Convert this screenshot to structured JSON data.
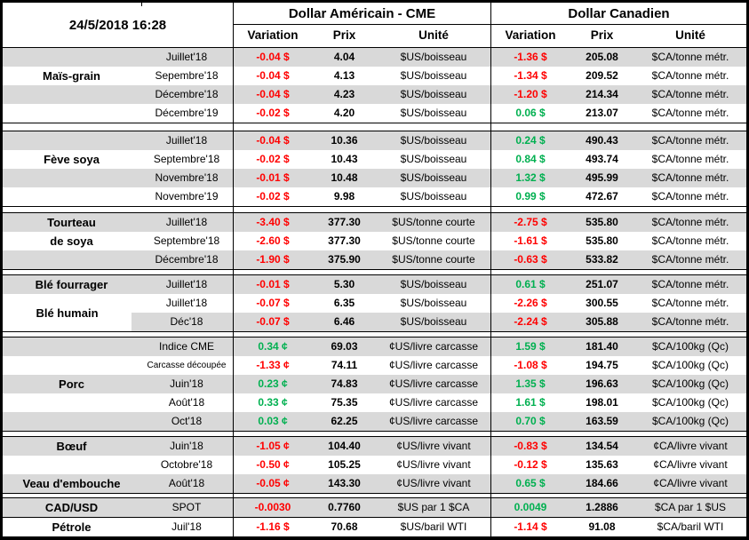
{
  "colors": {
    "negative": "#FF0000",
    "positive": "#00B050",
    "stripe": "#D9D9D9",
    "border": "#000000"
  },
  "chart_data": {
    "type": "table",
    "title": "24/5/2018 16:28",
    "header": {
      "us": "Dollar Américain - CME",
      "ca": "Dollar Canadien"
    },
    "columns": [
      "Variation",
      "Prix",
      "Unité"
    ],
    "groups": [
      {
        "id": "mais-grain",
        "labels": [
          {
            "text": "Maïs-grain",
            "row": 1
          }
        ],
        "rows": [
          {
            "month": "Juillet'18",
            "us": [
              "-0.04 $",
              "4.04",
              "$US/boisseau"
            ],
            "ca": [
              "-1.36 $",
              "205.08",
              "$CA/tonne métr."
            ]
          },
          {
            "month": "Sepembre'18",
            "us": [
              "-0.04 $",
              "4.13",
              "$US/boisseau"
            ],
            "ca": [
              "-1.34 $",
              "209.52",
              "$CA/tonne métr."
            ]
          },
          {
            "month": "Décembre'18",
            "us": [
              "-0.04 $",
              "4.23",
              "$US/boisseau"
            ],
            "ca": [
              "-1.20 $",
              "214.34",
              "$CA/tonne métr."
            ]
          },
          {
            "month": "Décembre'19",
            "us": [
              "-0.02 $",
              "4.20",
              "$US/boisseau"
            ],
            "ca": [
              "0.06 $",
              "213.07",
              "$CA/tonne métr."
            ]
          }
        ]
      },
      {
        "id": "feve-soya",
        "gap_before": 8,
        "labels": [
          {
            "text": "Fève soya",
            "row": 1
          }
        ],
        "rows": [
          {
            "month": "Juillet'18",
            "us": [
              "-0.04 $",
              "10.36",
              "$US/boisseau"
            ],
            "ca": [
              "0.24 $",
              "490.43",
              "$CA/tonne métr."
            ]
          },
          {
            "month": "Septembre'18",
            "us": [
              "-0.02 $",
              "10.43",
              "$US/boisseau"
            ],
            "ca": [
              "0.84 $",
              "493.74",
              "$CA/tonne métr."
            ]
          },
          {
            "month": "Novembre'18",
            "us": [
              "-0.01 $",
              "10.48",
              "$US/boisseau"
            ],
            "ca": [
              "1.32 $",
              "495.99",
              "$CA/tonne métr."
            ]
          },
          {
            "month": "Novembre'19",
            "us": [
              "-0.02 $",
              "9.98",
              "$US/boisseau"
            ],
            "ca": [
              "0.99 $",
              "472.67",
              "$CA/tonne métr."
            ]
          }
        ]
      },
      {
        "id": "tourteau-de-soya",
        "gap_before": 6,
        "labels": [
          {
            "text": "Tourteau",
            "row": 0
          },
          {
            "text": "de soya",
            "row": 1
          }
        ],
        "rows": [
          {
            "month": "Juillet'18",
            "us": [
              "-3.40 $",
              "377.30",
              "$US/tonne courte"
            ],
            "ca": [
              "-2.75 $",
              "535.80",
              "$CA/tonne métr."
            ]
          },
          {
            "month": "Septembre'18",
            "us": [
              "-2.60 $",
              "377.30",
              "$US/tonne courte"
            ],
            "ca": [
              "-1.61 $",
              "535.80",
              "$CA/tonne métr."
            ]
          },
          {
            "month": "Décembre'18",
            "us": [
              "-1.90 $",
              "375.90",
              "$US/tonne courte"
            ],
            "ca": [
              "-0.63 $",
              "533.82",
              "$CA/tonne métr."
            ]
          }
        ]
      },
      {
        "id": "ble",
        "gap_before": 5,
        "labels": [
          {
            "text": "Blé fourrager",
            "row": 0
          },
          {
            "text": "Blé humain",
            "row": 1,
            "span": 2
          }
        ],
        "rows": [
          {
            "month": "Juillet'18",
            "us": [
              "-0.01 $",
              "5.30",
              "$US/boisseau"
            ],
            "ca": [
              "0.61 $",
              "251.07",
              "$CA/tonne métr."
            ]
          },
          {
            "month": "Juillet'18",
            "us": [
              "-0.07 $",
              "6.35",
              "$US/boisseau"
            ],
            "ca": [
              "-2.26 $",
              "300.55",
              "$CA/tonne métr."
            ]
          },
          {
            "month": "Déc'18",
            "us": [
              "-0.07 $",
              "6.46",
              "$US/boisseau"
            ],
            "ca": [
              "-2.24 $",
              "305.88",
              "$CA/tonne métr."
            ]
          }
        ]
      },
      {
        "id": "porc",
        "gap_before": 5,
        "labels": [
          {
            "text": "Porc",
            "row": 2
          }
        ],
        "rows": [
          {
            "month": "Indice CME",
            "us": [
              "0.34 ¢",
              "69.03",
              "¢US/livre carcasse"
            ],
            "ca": [
              "1.59 $",
              "181.40",
              "$CA/100kg (Qc)"
            ]
          },
          {
            "month": "Carcasse découpée",
            "small": true,
            "us": [
              "-1.33 ¢",
              "74.11",
              "¢US/livre carcasse"
            ],
            "ca": [
              "-1.08 $",
              "194.75",
              "$CA/100kg (Qc)"
            ]
          },
          {
            "month": "Juin'18",
            "us": [
              "0.23 ¢",
              "74.83",
              "¢US/livre carcasse"
            ],
            "ca": [
              "1.35 $",
              "196.63",
              "$CA/100kg (Qc)"
            ]
          },
          {
            "month": "Août'18",
            "us": [
              "0.33 ¢",
              "75.35",
              "¢US/livre carcasse"
            ],
            "ca": [
              "1.61 $",
              "198.01",
              "$CA/100kg (Qc)"
            ]
          },
          {
            "month": "Oct'18",
            "us": [
              "0.03 ¢",
              "62.25",
              "¢US/livre carcasse"
            ],
            "ca": [
              "0.70 $",
              "163.59",
              "$CA/100kg (Qc)"
            ]
          }
        ]
      },
      {
        "id": "boeuf-veau",
        "gap_before": 5,
        "labels": [
          {
            "text": "Bœuf",
            "row": 0
          },
          {
            "text": "Veau d'embouche",
            "row": 2
          }
        ],
        "rows": [
          {
            "month": "Juin'18",
            "us": [
              "-1.05 ¢",
              "104.40",
              "¢US/livre vivant"
            ],
            "ca": [
              "-0.83 $",
              "134.54",
              "¢CA/livre vivant"
            ]
          },
          {
            "month": "Octobre'18",
            "us": [
              "-0.50 ¢",
              "105.25",
              "¢US/livre vivant"
            ],
            "ca": [
              "-0.12 $",
              "135.63",
              "¢CA/livre vivant"
            ]
          },
          {
            "month": "Août'18",
            "us": [
              "-0.05 ¢",
              "143.30",
              "¢US/livre vivant"
            ],
            "ca": [
              "0.65 $",
              "184.66",
              "¢CA/livre vivant"
            ]
          }
        ]
      },
      {
        "id": "cad-petrole",
        "gap_before": 4,
        "divider_rows": [
          1
        ],
        "labels": [
          {
            "text": "CAD/USD",
            "row": 0
          },
          {
            "text": "Pétrole",
            "row": 1
          }
        ],
        "rows": [
          {
            "month": "SPOT",
            "us": [
              "-0.0030",
              "0.7760",
              "$US par 1 $CA"
            ],
            "ca": [
              "0.0049",
              "1.2886",
              "$CA par 1 $US"
            ]
          },
          {
            "month": "Juil'18",
            "us": [
              "-1.16 $",
              "70.68",
              "$US/baril WTI"
            ],
            "ca": [
              "-1.14 $",
              "91.08",
              "$CA/baril WTI"
            ]
          }
        ]
      }
    ]
  }
}
